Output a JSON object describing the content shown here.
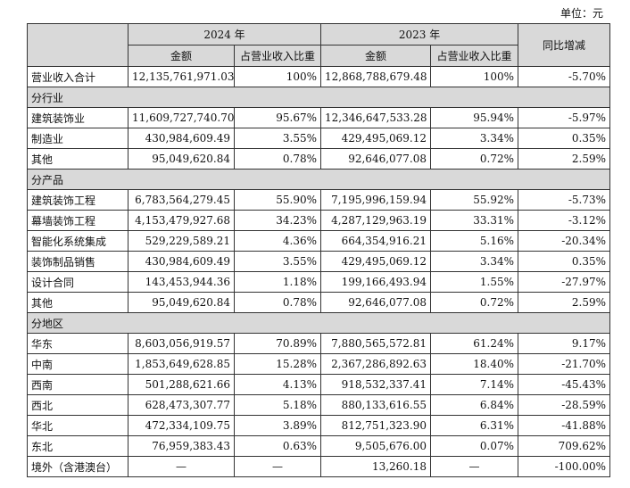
{
  "unit_label": "单位：元",
  "header": {
    "year_2024": "2024 年",
    "year_2023": "2023 年",
    "amount": "金额",
    "share": "占营业收入比重",
    "yoy": "同比增减"
  },
  "total_row": {
    "label": "营业收入合计",
    "a2024": "12,135,761,971.03",
    "s2024": "100%",
    "a2023": "12,868,788,679.48",
    "s2023": "100%",
    "yoy": "-5.70%"
  },
  "sections": [
    {
      "title": "分行业",
      "rows": [
        {
          "label": "建筑装饰业",
          "a2024": "11,609,727,740.70",
          "s2024": "95.67%",
          "a2023": "12,346,647,533.28",
          "s2023": "95.94%",
          "yoy": "-5.97%"
        },
        {
          "label": "制造业",
          "a2024": "430,984,609.49",
          "s2024": "3.55%",
          "a2023": "429,495,069.12",
          "s2023": "3.34%",
          "yoy": "0.35%"
        },
        {
          "label": "其他",
          "a2024": "95,049,620.84",
          "s2024": "0.78%",
          "a2023": "92,646,077.08",
          "s2023": "0.72%",
          "yoy": "2.59%"
        }
      ]
    },
    {
      "title": "分产品",
      "rows": [
        {
          "label": "建筑装饰工程",
          "a2024": "6,783,564,279.45",
          "s2024": "55.90%",
          "a2023": "7,195,996,159.94",
          "s2023": "55.92%",
          "yoy": "-5.73%"
        },
        {
          "label": "幕墙装饰工程",
          "a2024": "4,153,479,927.68",
          "s2024": "34.23%",
          "a2023": "4,287,129,963.19",
          "s2023": "33.31%",
          "yoy": "-3.12%"
        },
        {
          "label": "智能化系统集成",
          "a2024": "529,229,589.21",
          "s2024": "4.36%",
          "a2023": "664,354,916.21",
          "s2023": "5.16%",
          "yoy": "-20.34%"
        },
        {
          "label": "装饰制品销售",
          "a2024": "430,984,609.49",
          "s2024": "3.55%",
          "a2023": "429,495,069.12",
          "s2023": "3.34%",
          "yoy": "0.35%"
        },
        {
          "label": "设计合同",
          "a2024": "143,453,944.36",
          "s2024": "1.18%",
          "a2023": "199,166,493.94",
          "s2023": "1.55%",
          "yoy": "-27.97%"
        },
        {
          "label": "其他",
          "a2024": "95,049,620.84",
          "s2024": "0.78%",
          "a2023": "92,646,077.08",
          "s2023": "0.72%",
          "yoy": "2.59%"
        }
      ]
    },
    {
      "title": "分地区",
      "rows": [
        {
          "label": "华东",
          "a2024": "8,603,056,919.57",
          "s2024": "70.89%",
          "a2023": "7,880,565,572.81",
          "s2023": "61.24%",
          "yoy": "9.17%"
        },
        {
          "label": "中南",
          "a2024": "1,853,649,628.85",
          "s2024": "15.28%",
          "a2023": "2,367,286,892.63",
          "s2023": "18.40%",
          "yoy": "-21.70%"
        },
        {
          "label": "西南",
          "a2024": "501,288,621.66",
          "s2024": "4.13%",
          "a2023": "918,532,337.41",
          "s2023": "7.14%",
          "yoy": "-45.43%"
        },
        {
          "label": "西北",
          "a2024": "628,473,307.77",
          "s2024": "5.18%",
          "a2023": "880,133,616.55",
          "s2023": "6.84%",
          "yoy": "-28.59%"
        },
        {
          "label": "华北",
          "a2024": "472,334,109.75",
          "s2024": "3.89%",
          "a2023": "812,751,323.90",
          "s2023": "6.31%",
          "yoy": "-41.88%"
        },
        {
          "label": "东北",
          "a2024": "76,959,383.43",
          "s2024": "0.63%",
          "a2023": "9,505,676.00",
          "s2023": "0.07%",
          "yoy": "709.62%"
        },
        {
          "label": "境外（含港澳台）",
          "a2024": "—",
          "s2024": "—",
          "a2023": "13,260.18",
          "s2023": "—",
          "yoy": "-100.00%"
        }
      ]
    }
  ]
}
